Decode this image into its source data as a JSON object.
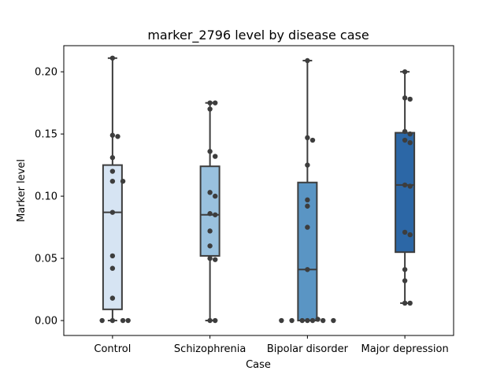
{
  "chart_data": {
    "type": "box",
    "title": "marker_2796 level by disease case",
    "xlabel": "Case",
    "ylabel": "Marker level",
    "ylim": [
      -0.012,
      0.221
    ],
    "yticks": [
      0.0,
      0.05,
      0.1,
      0.15,
      0.2
    ],
    "ytick_labels": [
      "0.00",
      "0.05",
      "0.10",
      "0.15",
      "0.20"
    ],
    "grid": false,
    "categories": [
      "Control",
      "Schizophrenia",
      "Bipolar disorder",
      "Major depression"
    ],
    "colors": [
      "#d6e4f3",
      "#99c1de",
      "#5a95c4",
      "#2c67a6"
    ],
    "boxes": [
      {
        "whislo": 0.0,
        "q1": 0.009,
        "median": 0.087,
        "q3": 0.125,
        "whishi": 0.211
      },
      {
        "whislo": 0.0,
        "q1": 0.052,
        "median": 0.085,
        "q3": 0.124,
        "whishi": 0.175
      },
      {
        "whislo": 0.0,
        "q1": 0.0,
        "median": 0.041,
        "q3": 0.111,
        "whishi": 0.209
      },
      {
        "whislo": 0.014,
        "q1": 0.055,
        "median": 0.109,
        "q3": 0.151,
        "whishi": 0.2
      }
    ],
    "points": [
      [
        0.211,
        0.149,
        0.148,
        0.131,
        0.12,
        0.112,
        0.112,
        0.087,
        0.052,
        0.042,
        0.018,
        0.0,
        0.0,
        0.0,
        0.0
      ],
      [
        0.175,
        0.175,
        0.17,
        0.136,
        0.132,
        0.103,
        0.1,
        0.086,
        0.085,
        0.072,
        0.06,
        0.05,
        0.049,
        0.0,
        0.0
      ],
      [
        0.209,
        0.147,
        0.145,
        0.125,
        0.097,
        0.092,
        0.075,
        0.041,
        0.0,
        0.0,
        0.0,
        0.0,
        0.0,
        0.0,
        0.0,
        0.001
      ],
      [
        0.2,
        0.179,
        0.178,
        0.152,
        0.15,
        0.145,
        0.143,
        0.109,
        0.108,
        0.071,
        0.069,
        0.041,
        0.032,
        0.014,
        0.014
      ]
    ]
  }
}
